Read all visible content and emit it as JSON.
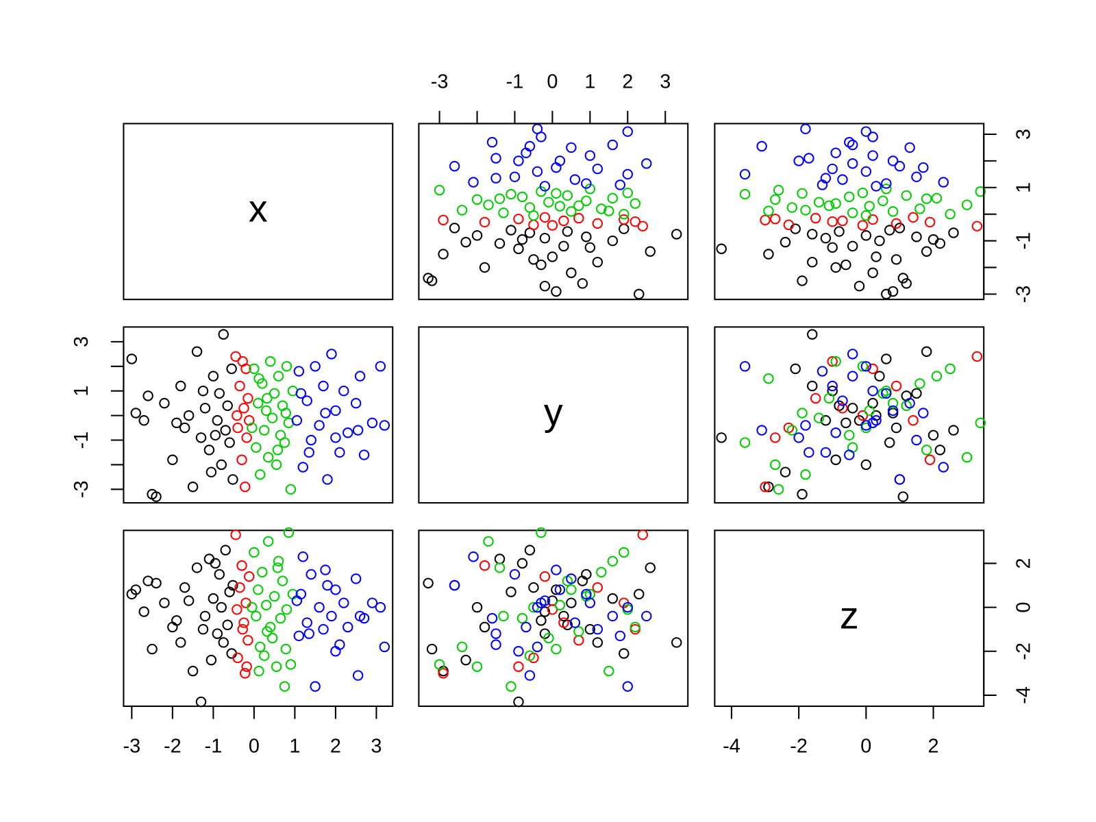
{
  "chart_data": {
    "type": "scatter_matrix",
    "variables": [
      "x",
      "y",
      "z"
    ],
    "scales": [
      {
        "lim": [
          -3.2,
          3.4
        ]
      },
      {
        "lim": [
          -3.55,
          3.6
        ]
      },
      {
        "lim": [
          -4.5,
          3.5
        ]
      }
    ],
    "axes": [
      {
        "variable": 0,
        "ticks": [
          -3,
          -2,
          -1,
          0,
          1,
          2,
          3
        ],
        "labels": [
          -3,
          -2,
          -1,
          0,
          1,
          2,
          3
        ]
      },
      {
        "variable": 1,
        "ticks": [
          -3,
          -2,
          -1,
          0,
          1,
          2,
          3
        ],
        "labels": [
          -3,
          -1,
          0,
          1,
          2,
          3
        ]
      },
      {
        "variable": 2,
        "ticks": [
          -4,
          -2,
          0,
          2
        ],
        "labels": [
          -4,
          -2,
          0,
          2
        ]
      },
      {
        "variable": 1,
        "ticks": [
          -3,
          -2,
          -1,
          0,
          1,
          2,
          3
        ],
        "labels": [
          -3,
          -1,
          1,
          3
        ]
      },
      {
        "variable": 0,
        "ticks": [
          -3,
          -2,
          -1,
          0,
          1,
          2,
          3
        ],
        "labels": [
          -3,
          -1,
          1,
          3
        ]
      },
      {
        "variable": 2,
        "ticks": [
          -4,
          -2,
          0,
          2
        ],
        "labels": [
          -4,
          -2,
          0,
          2
        ]
      }
    ],
    "groups": [
      {
        "color": "#000000",
        "x": [
          -3.0,
          -2.9,
          -2.6,
          -2.5,
          -2.4,
          -2.2,
          -2.0,
          -1.8,
          -1.7,
          -1.5,
          -1.4,
          -1.3,
          -1.2,
          -1.1,
          -1.0,
          -0.9,
          -0.85,
          -0.8,
          -0.75,
          -0.7,
          -0.65,
          -0.6,
          -0.55,
          -0.52,
          -1.6,
          -1.9,
          -1.25,
          -0.95,
          -2.7,
          -1.05
        ],
        "y": [
          2.3,
          0.1,
          0.8,
          -3.2,
          -3.3,
          0.5,
          -1.8,
          1.2,
          -0.5,
          -2.9,
          2.6,
          -0.9,
          0.3,
          -1.4,
          1.6,
          -0.2,
          0.9,
          -2.0,
          3.3,
          -0.6,
          0.4,
          -1.1,
          1.9,
          -2.6,
          0.0,
          -0.3,
          1.0,
          -0.8,
          -0.2,
          -2.3
        ],
        "z": [
          0.6,
          0.8,
          1.2,
          -1.9,
          1.1,
          0.2,
          -0.9,
          -1.6,
          0.9,
          -2.9,
          1.8,
          -4.3,
          -0.4,
          2.2,
          0.4,
          -1.2,
          1.5,
          0.0,
          -1.6,
          2.6,
          -0.8,
          0.7,
          -2.1,
          1.0,
          0.3,
          -0.6,
          -1.0,
          2.0,
          -0.2,
          -2.4
        ]
      },
      {
        "color": "#ff0000",
        "x": [
          -0.45,
          -0.4,
          -0.35,
          -0.3,
          -0.25,
          -0.22,
          -0.2,
          -0.18,
          -0.15,
          -0.12,
          -0.42,
          -0.28
        ],
        "y": [
          2.4,
          -0.5,
          1.2,
          -1.8,
          0.3,
          -2.9,
          1.9,
          -0.9,
          0.7,
          -0.2,
          0.0,
          2.2
        ],
        "z": [
          3.3,
          -2.3,
          0.9,
          1.9,
          -0.7,
          -3.0,
          0.2,
          -2.7,
          -1.5,
          1.4,
          -0.1,
          -1.0
        ]
      },
      {
        "color": "#00cd00",
        "x": [
          0.0,
          0.05,
          0.1,
          0.15,
          0.2,
          0.25,
          0.3,
          0.35,
          0.4,
          0.45,
          0.5,
          0.55,
          0.6,
          0.65,
          0.7,
          0.75,
          0.8,
          0.85,
          0.9,
          0.95,
          -0.05,
          0.32,
          0.58,
          0.12,
          0.78
        ],
        "y": [
          1.9,
          -1.3,
          0.5,
          -2.4,
          1.3,
          -0.6,
          0.2,
          -1.7,
          2.2,
          -0.1,
          0.9,
          -2.0,
          1.6,
          -0.8,
          0.4,
          -1.1,
          2.0,
          -0.3,
          -3.0,
          1.0,
          -0.5,
          0.7,
          -1.4,
          1.5,
          0.1
        ],
        "z": [
          2.5,
          -0.4,
          0.8,
          -1.8,
          1.6,
          -2.2,
          0.1,
          3.0,
          -0.9,
          -1.4,
          0.5,
          -2.7,
          2.1,
          -0.5,
          1.2,
          -3.6,
          -0.1,
          3.4,
          -2.6,
          0.6,
          0.0,
          -1.1,
          1.8,
          -2.9,
          -1.9
        ]
      },
      {
        "color": "#0000ff",
        "x": [
          1.05,
          1.1,
          1.2,
          1.3,
          1.4,
          1.5,
          1.6,
          1.7,
          1.8,
          1.9,
          2.0,
          2.1,
          2.2,
          2.3,
          2.5,
          2.6,
          2.7,
          2.9,
          3.1,
          3.2,
          2.55,
          1.15,
          1.35,
          1.75,
          2.0
        ],
        "y": [
          -0.2,
          1.8,
          -2.1,
          0.6,
          -1.0,
          2.0,
          -0.4,
          1.2,
          -2.6,
          2.5,
          0.2,
          -1.5,
          1.0,
          -0.7,
          0.5,
          1.6,
          -1.6,
          -0.3,
          2.0,
          -0.4,
          -0.6,
          0.9,
          -1.5,
          0.1,
          -0.9
        ],
        "z": [
          0.3,
          -1.3,
          2.3,
          -0.7,
          1.5,
          -3.6,
          0.0,
          -1.0,
          1.0,
          -0.4,
          0.8,
          -1.7,
          0.2,
          -0.9,
          1.3,
          -0.4,
          -0.5,
          0.2,
          0.0,
          -1.8,
          -3.1,
          0.6,
          -1.2,
          1.7,
          -2.0
        ]
      }
    ]
  }
}
